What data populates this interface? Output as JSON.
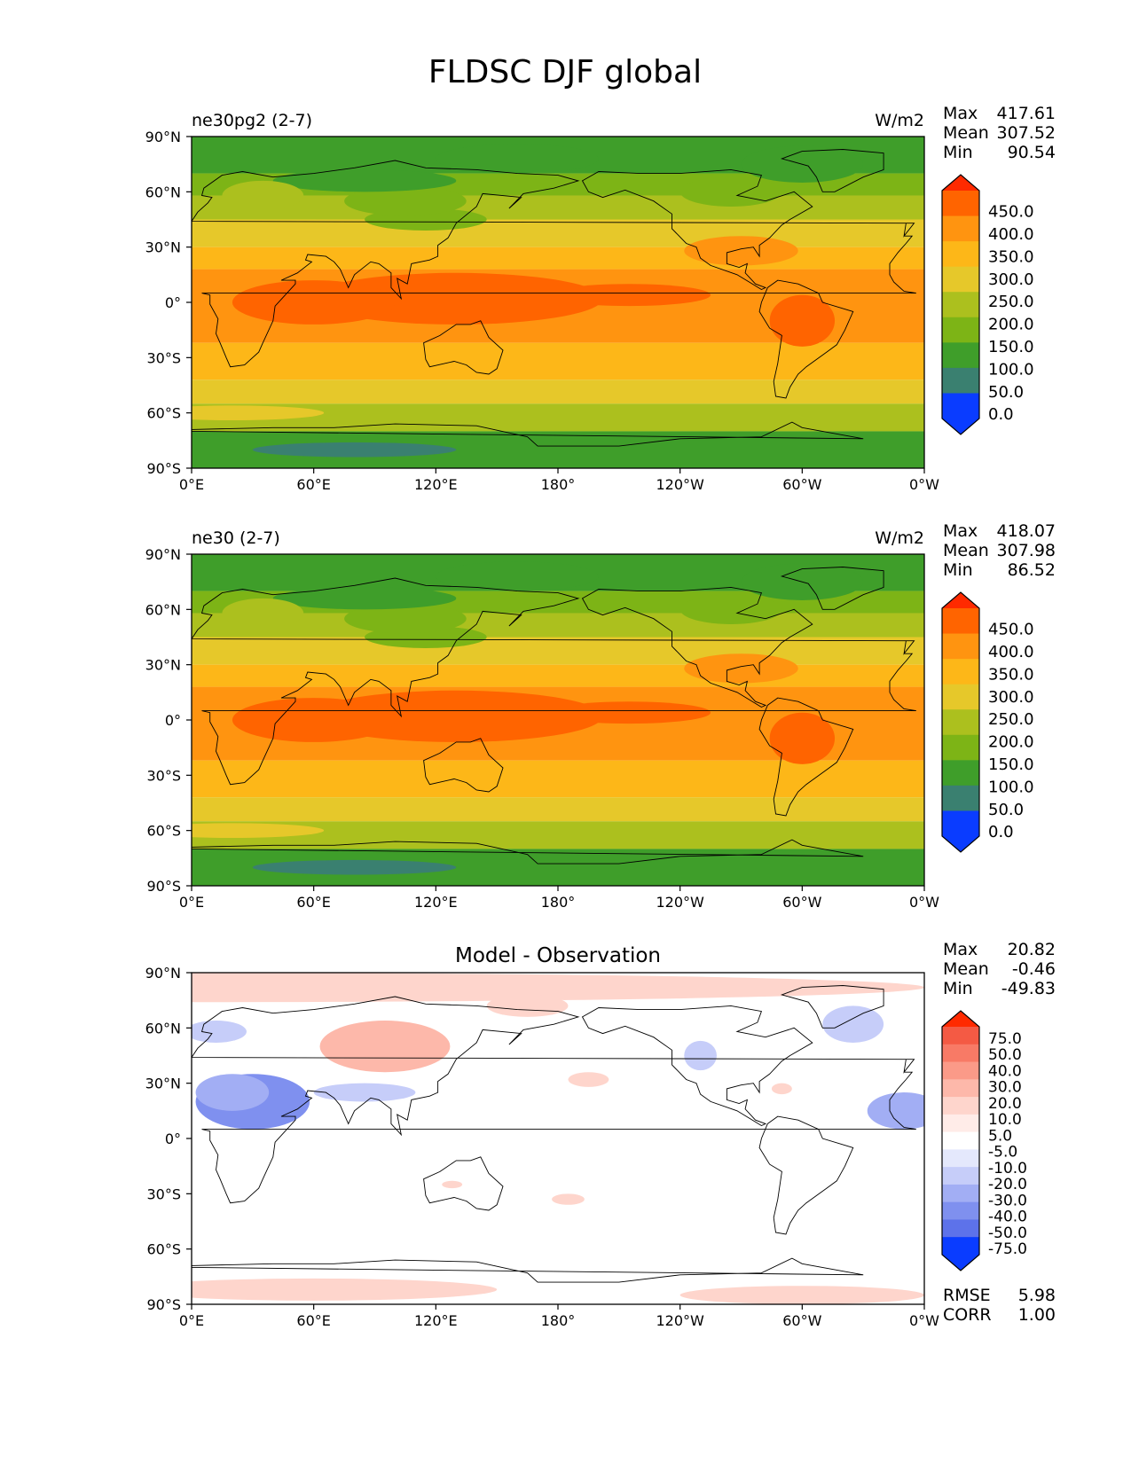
{
  "figure_title": "FLDSC DJF global",
  "chart_data": [
    {
      "type": "heatmap",
      "panel": "model_a",
      "title_left": "ne30pg2 (2-7)",
      "units": "W/m2",
      "stats": [
        {
          "label": "Max",
          "value": "417.61"
        },
        {
          "label": "Mean",
          "value": "307.52"
        },
        {
          "label": "Min",
          "value": "90.54"
        }
      ],
      "xticks": [
        "0°E",
        "60°E",
        "120°E",
        "180°",
        "120°W",
        "60°W",
        "0°W"
      ],
      "yticks": [
        "90°N",
        "60°N",
        "30°N",
        "0°",
        "30°S",
        "60°S",
        "90°S"
      ],
      "xlim": [
        0,
        360
      ],
      "ylim": [
        -90,
        90
      ],
      "colorbar": {
        "labels": [
          "450.0",
          "400.0",
          "350.0",
          "300.0",
          "250.0",
          "200.0",
          "150.0",
          "100.0",
          "50.0",
          "0.0"
        ],
        "colors": [
          "#ff2a00",
          "#ff6400",
          "#ff9410",
          "#fdb718",
          "#e6c82a",
          "#acc01e",
          "#7db416",
          "#3f9e2a",
          "#3a8070",
          "#0e6ab0",
          "#0a3cff"
        ]
      }
    },
    {
      "type": "heatmap",
      "panel": "model_b",
      "title_left": "ne30 (2-7)",
      "units": "W/m2",
      "stats": [
        {
          "label": "Max",
          "value": "418.07"
        },
        {
          "label": "Mean",
          "value": "307.98"
        },
        {
          "label": "Min",
          "value": "86.52"
        }
      ],
      "xticks": [
        "0°E",
        "60°E",
        "120°E",
        "180°",
        "120°W",
        "60°W",
        "0°W"
      ],
      "yticks": [
        "90°N",
        "60°N",
        "30°N",
        "0°",
        "30°S",
        "60°S",
        "90°S"
      ],
      "xlim": [
        0,
        360
      ],
      "ylim": [
        -90,
        90
      ],
      "colorbar": {
        "labels": [
          "450.0",
          "400.0",
          "350.0",
          "300.0",
          "250.0",
          "200.0",
          "150.0",
          "100.0",
          "50.0",
          "0.0"
        ],
        "colors": [
          "#ff2a00",
          "#ff6400",
          "#ff9410",
          "#fdb718",
          "#e6c82a",
          "#acc01e",
          "#7db416",
          "#3f9e2a",
          "#3a8070",
          "#0e6ab0",
          "#0a3cff"
        ]
      }
    },
    {
      "type": "heatmap",
      "panel": "difference",
      "title_center": "Model - Observation",
      "stats": [
        {
          "label": "Max",
          "value": "20.82"
        },
        {
          "label": "Mean",
          "value": "-0.46"
        },
        {
          "label": "Min",
          "value": "-49.83"
        }
      ],
      "metrics": [
        {
          "label": "RMSE",
          "value": "5.98"
        },
        {
          "label": "CORR",
          "value": "1.00"
        }
      ],
      "xticks": [
        "0°E",
        "60°E",
        "120°E",
        "180°",
        "120°W",
        "60°W",
        "0°W"
      ],
      "yticks": [
        "90°N",
        "60°N",
        "30°N",
        "0°",
        "30°S",
        "60°S",
        "90°S"
      ],
      "xlim": [
        0,
        360
      ],
      "ylim": [
        -90,
        90
      ],
      "colorbar": {
        "labels": [
          "75.0",
          "50.0",
          "40.0",
          "30.0",
          "20.0",
          "10.0",
          "5.0",
          "-5.0",
          "-10.0",
          "-20.0",
          "-30.0",
          "-40.0",
          "-50.0",
          "-75.0"
        ],
        "colors": [
          "#ff2a00",
          "#f45a44",
          "#f87a66",
          "#fb9a88",
          "#fdb8aa",
          "#fed5cc",
          "#ffece8",
          "#ffffff",
          "#e4e8fc",
          "#c6cdf9",
          "#a2aef4",
          "#7f90ef",
          "#5d72ea",
          "#3552ee",
          "#0a3cff"
        ]
      }
    }
  ]
}
